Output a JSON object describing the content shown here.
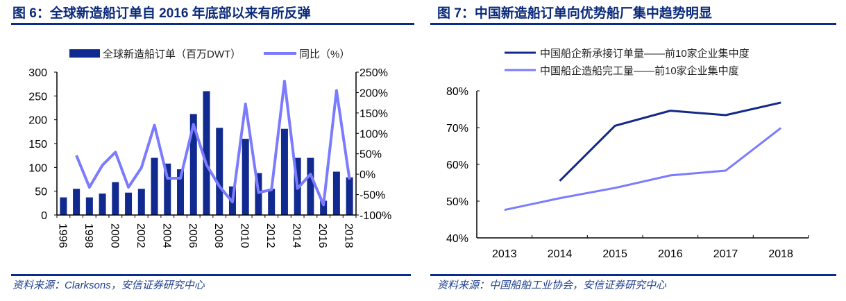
{
  "colors": {
    "bar": "#112a8f",
    "line_light": "#7b7bff",
    "line_dark": "#13288a",
    "rule": "#0a2d8c",
    "title": "#0b2a7a"
  },
  "chart_data": [
    {
      "type": "bar+line",
      "title": "图 6：全球新造船订单自 2016 年底部以来有所反弹",
      "source": "资料来源：Clarksons，安信证券研究中心",
      "categories": [
        "1996",
        "1997",
        "1998",
        "1999",
        "2000",
        "2001",
        "2002",
        "2003",
        "2004",
        "2005",
        "2006",
        "2007",
        "2008",
        "2009",
        "2010",
        "2011",
        "2012",
        "2013",
        "2014",
        "2015",
        "2016",
        "2017",
        "2018"
      ],
      "x_tick_labels": [
        "1996",
        "1998",
        "2000",
        "2002",
        "2004",
        "2006",
        "2008",
        "2010",
        "2012",
        "2014",
        "2016",
        "2018"
      ],
      "series": [
        {
          "name": "全球新造船订单（百万DWT）",
          "type": "bar",
          "axis": "left",
          "values": [
            37,
            55,
            37,
            45,
            69,
            47,
            55,
            120,
            108,
            96,
            212,
            260,
            183,
            60,
            160,
            88,
            55,
            181,
            120,
            120,
            30,
            91,
            79
          ]
        },
        {
          "name": "同比（%）",
          "type": "line",
          "axis": "right",
          "values": [
            null,
            46,
            -32,
            22,
            54,
            -32,
            16,
            120,
            -10,
            -10,
            122,
            23,
            -30,
            -68,
            172,
            -45,
            -38,
            228,
            -35,
            0,
            -75,
            205,
            -13
          ]
        }
      ],
      "ylim_left": [
        0,
        300
      ],
      "yticks_left": [
        "0",
        "50",
        "100",
        "150",
        "200",
        "250",
        "300"
      ],
      "ylim_right": [
        -100,
        250
      ],
      "yticks_right": [
        "-100%",
        "-50%",
        "0%",
        "50%",
        "100%",
        "150%",
        "200%",
        "250%"
      ],
      "legend": "top",
      "grid": false
    },
    {
      "type": "line",
      "title": "图 7：中国新造船订单向优势船厂集中趋势明显",
      "source": "资料来源：中国船舶工业协会，安信证券研究中心",
      "categories": [
        "2013",
        "2014",
        "2015",
        "2016",
        "2017",
        "2018"
      ],
      "series": [
        {
          "name": "中国船企新承接订单量——前10家企业集中度",
          "values": [
            null,
            55.5,
            70.5,
            74.6,
            73.4,
            76.8
          ]
        },
        {
          "name": "中国船企造船完工量——前10家企业集中度",
          "values": [
            47.6,
            50.8,
            53.6,
            57.0,
            58.3,
            69.9
          ]
        }
      ],
      "ylim": [
        40,
        80
      ],
      "yticks": [
        "40%",
        "50%",
        "60%",
        "70%",
        "80%"
      ],
      "legend": "top",
      "grid": false
    }
  ]
}
